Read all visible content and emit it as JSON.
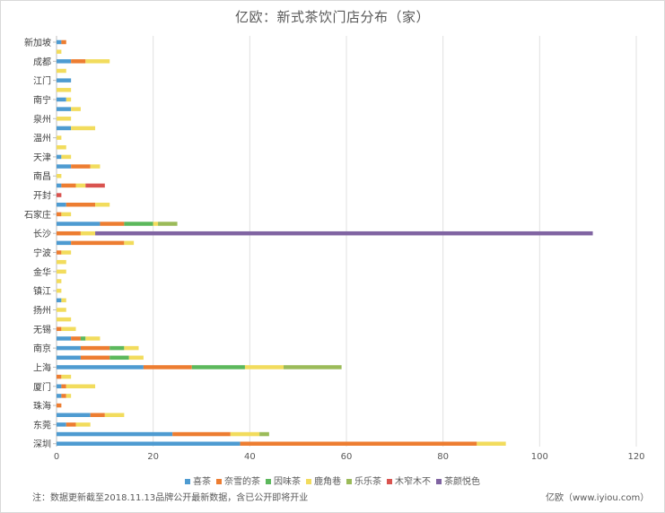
{
  "chart_data": {
    "type": "bar",
    "orientation": "horizontal",
    "stacked": true,
    "title": "亿欧：新式茶饮门店分布（家）",
    "xlim": [
      0,
      120
    ],
    "x_ticks": [
      0,
      20,
      40,
      60,
      80,
      100,
      120
    ],
    "grid": "vertical",
    "legend_position": "bottom",
    "rows": [
      {
        "label": "新加坡",
        "values": [
          1,
          1,
          0,
          0,
          0,
          0,
          0
        ]
      },
      {
        "label": "",
        "values": [
          0,
          0,
          0,
          1,
          0,
          0,
          0
        ]
      },
      {
        "label": "成都",
        "values": [
          3,
          3,
          0,
          5,
          0,
          0,
          0
        ]
      },
      {
        "label": "",
        "values": [
          0,
          0,
          0,
          2,
          0,
          0,
          0
        ]
      },
      {
        "label": "江门",
        "values": [
          3,
          0,
          0,
          0,
          0,
          0,
          0
        ]
      },
      {
        "label": "",
        "values": [
          0,
          0,
          0,
          3,
          0,
          0,
          0
        ]
      },
      {
        "label": "南宁",
        "values": [
          2,
          0,
          0,
          1,
          0,
          0,
          0
        ]
      },
      {
        "label": "",
        "values": [
          3,
          0,
          0,
          2,
          0,
          0,
          0
        ]
      },
      {
        "label": "泉州",
        "values": [
          0,
          0,
          0,
          3,
          0,
          0,
          0
        ]
      },
      {
        "label": "",
        "values": [
          3,
          0,
          0,
          5,
          0,
          0,
          0
        ]
      },
      {
        "label": "温州",
        "values": [
          0,
          0,
          0,
          1,
          0,
          0,
          0
        ]
      },
      {
        "label": "",
        "values": [
          0,
          0,
          0,
          2,
          0,
          0,
          0
        ]
      },
      {
        "label": "天津",
        "values": [
          1,
          0,
          0,
          2,
          0,
          0,
          0
        ]
      },
      {
        "label": "",
        "values": [
          3,
          4,
          0,
          2,
          0,
          0,
          0
        ]
      },
      {
        "label": "南昌",
        "values": [
          0,
          0,
          0,
          1,
          0,
          0,
          0
        ]
      },
      {
        "label": "",
        "values": [
          1,
          3,
          0,
          2,
          0,
          4,
          0
        ]
      },
      {
        "label": "开封",
        "values": [
          0,
          0,
          0,
          0,
          0,
          1,
          0
        ]
      },
      {
        "label": "",
        "values": [
          2,
          6,
          0,
          3,
          0,
          0,
          0
        ]
      },
      {
        "label": "石家庄",
        "values": [
          0,
          1,
          0,
          2,
          0,
          0,
          0
        ]
      },
      {
        "label": "",
        "values": [
          9,
          5,
          6,
          1,
          4,
          0,
          0
        ]
      },
      {
        "label": "长沙",
        "values": [
          0,
          5,
          0,
          3,
          0,
          0,
          103
        ]
      },
      {
        "label": "",
        "values": [
          3,
          11,
          0,
          2,
          0,
          0,
          0
        ]
      },
      {
        "label": "宁波",
        "values": [
          0,
          1,
          0,
          2,
          0,
          0,
          0
        ]
      },
      {
        "label": "",
        "values": [
          0,
          0,
          0,
          2,
          0,
          0,
          0
        ]
      },
      {
        "label": "金华",
        "values": [
          0,
          0,
          0,
          2,
          0,
          0,
          0
        ]
      },
      {
        "label": "",
        "values": [
          0,
          0,
          0,
          1,
          0,
          0,
          0
        ]
      },
      {
        "label": "镇江",
        "values": [
          0,
          0,
          0,
          1,
          0,
          0,
          0
        ]
      },
      {
        "label": "",
        "values": [
          1,
          0,
          0,
          1,
          0,
          0,
          0
        ]
      },
      {
        "label": "扬州",
        "values": [
          0,
          0,
          0,
          2,
          0,
          0,
          0
        ]
      },
      {
        "label": "",
        "values": [
          0,
          0,
          0,
          3,
          0,
          0,
          0
        ]
      },
      {
        "label": "无锡",
        "values": [
          0,
          1,
          0,
          3,
          0,
          0,
          0
        ]
      },
      {
        "label": "",
        "values": [
          3,
          2,
          1,
          3,
          0,
          0,
          0
        ]
      },
      {
        "label": "南京",
        "values": [
          5,
          6,
          3,
          3,
          0,
          0,
          0
        ]
      },
      {
        "label": "",
        "values": [
          5,
          6,
          4,
          3,
          0,
          0,
          0
        ]
      },
      {
        "label": "上海",
        "values": [
          18,
          10,
          11,
          8,
          12,
          0,
          0
        ]
      },
      {
        "label": "",
        "values": [
          0,
          1,
          0,
          2,
          0,
          0,
          0
        ]
      },
      {
        "label": "厦门",
        "values": [
          1,
          1,
          0,
          6,
          0,
          0,
          0
        ]
      },
      {
        "label": "",
        "values": [
          1,
          1,
          0,
          1,
          0,
          0,
          0
        ]
      },
      {
        "label": "珠海",
        "values": [
          0,
          1,
          0,
          0,
          0,
          0,
          0
        ]
      },
      {
        "label": "",
        "values": [
          7,
          3,
          0,
          4,
          0,
          0,
          0
        ]
      },
      {
        "label": "东莞",
        "values": [
          2,
          2,
          0,
          3,
          0,
          0,
          0
        ]
      },
      {
        "label": "",
        "values": [
          24,
          12,
          0,
          6,
          2,
          0,
          0
        ]
      },
      {
        "label": "深圳",
        "values": [
          38,
          49,
          0,
          6,
          0,
          0,
          0
        ]
      }
    ],
    "series": [
      {
        "name": "喜茶",
        "color": "#4E9BD1"
      },
      {
        "name": "奈雪的茶",
        "color": "#ED7D31"
      },
      {
        "name": "因味茶",
        "color": "#5CB85C"
      },
      {
        "name": "鹿角巷",
        "color": "#F2DC5D"
      },
      {
        "name": "乐乐茶",
        "color": "#9BBB59"
      },
      {
        "name": "木窄木不",
        "color": "#D9534F"
      },
      {
        "name": "茶颜悦色",
        "color": "#8064A2"
      }
    ]
  },
  "footer": {
    "note": "注：数据更新截至2018.11.13品牌公开最新数据，含已公开即将开业",
    "source": "亿欧（www.iyiou.com）"
  }
}
